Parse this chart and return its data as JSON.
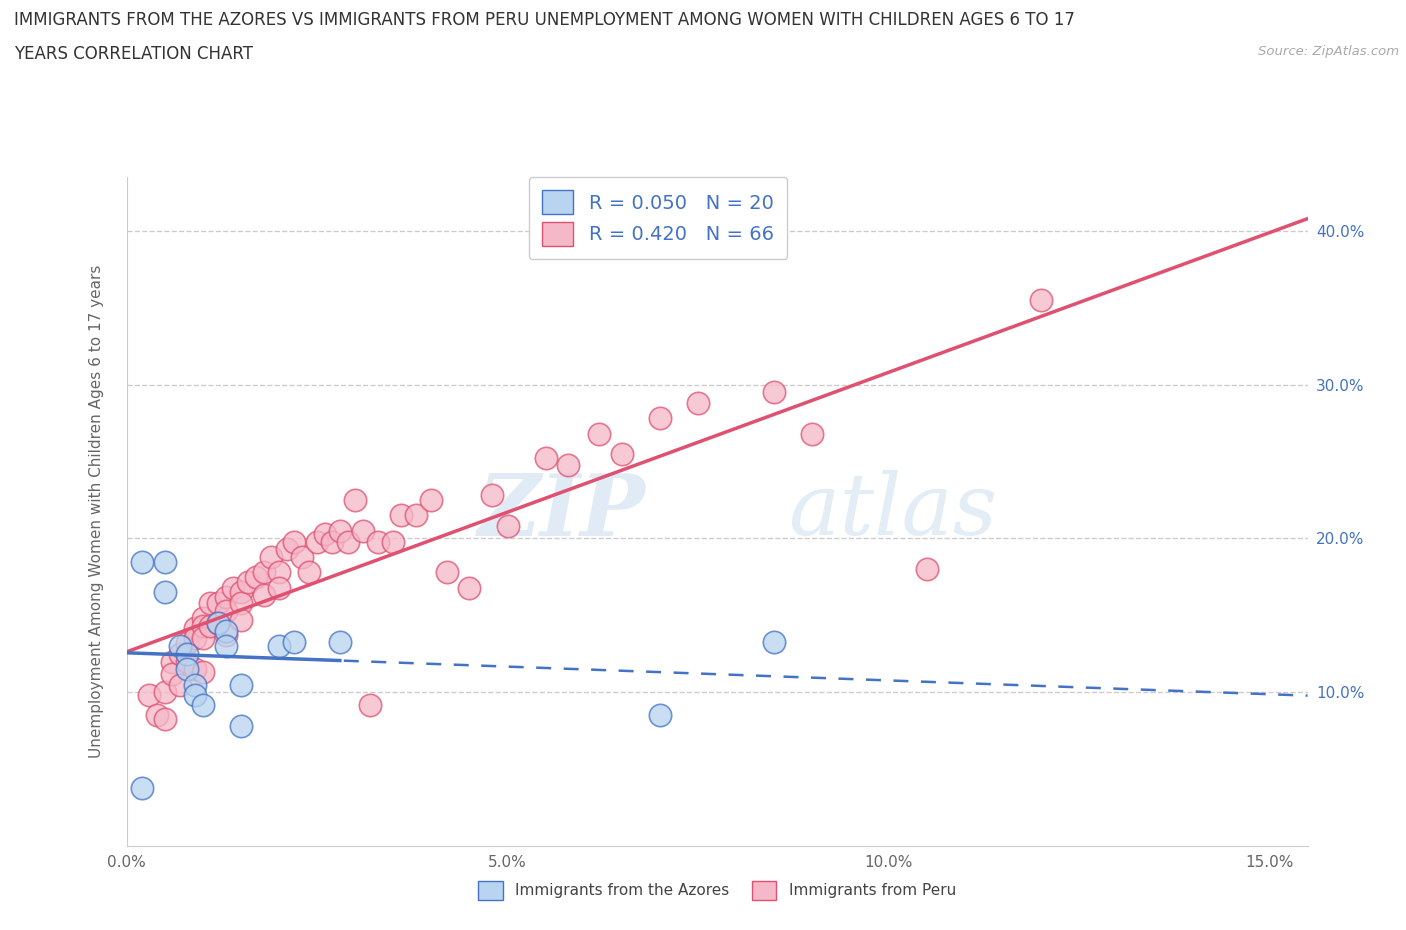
{
  "title_line1": "IMMIGRANTS FROM THE AZORES VS IMMIGRANTS FROM PERU UNEMPLOYMENT AMONG WOMEN WITH CHILDREN AGES 6 TO 17",
  "title_line2": "YEARS CORRELATION CHART",
  "source_text": "Source: ZipAtlas.com",
  "ylabel": "Unemployment Among Women with Children Ages 6 to 17 years",
  "xlim": [
    0.0,
    0.155
  ],
  "ylim": [
    0.0,
    0.435
  ],
  "xtick_labels": [
    "0.0%",
    "5.0%",
    "10.0%",
    "15.0%"
  ],
  "xtick_vals": [
    0.0,
    0.05,
    0.1,
    0.15
  ],
  "ytick_labels": [
    "10.0%",
    "20.0%",
    "30.0%",
    "40.0%"
  ],
  "ytick_vals": [
    0.1,
    0.2,
    0.3,
    0.4
  ],
  "azores_scatter_color": "#b8d4f0",
  "azores_edge_color": "#4472c4",
  "peru_scatter_color": "#f5b8c8",
  "peru_edge_color": "#e05070",
  "azores_line_color": "#4472c4",
  "peru_line_color": "#e05070",
  "legend_azores_stat": "R = 0.050   N = 20",
  "legend_peru_stat": "R = 0.420   N = 66",
  "legend_bottom_azores": "Immigrants from the Azores",
  "legend_bottom_peru": "Immigrants from Peru",
  "watermark_zip": "ZIP",
  "watermark_atlas": "atlas",
  "background_color": "#ffffff",
  "grid_color": "#cccccc",
  "azores_x": [
    0.002,
    0.005,
    0.005,
    0.007,
    0.008,
    0.008,
    0.009,
    0.009,
    0.01,
    0.012,
    0.013,
    0.013,
    0.015,
    0.015,
    0.02,
    0.022,
    0.028,
    0.07,
    0.085,
    0.002
  ],
  "azores_y": [
    0.185,
    0.185,
    0.165,
    0.13,
    0.125,
    0.115,
    0.105,
    0.098,
    0.092,
    0.145,
    0.14,
    0.13,
    0.105,
    0.078,
    0.13,
    0.133,
    0.133,
    0.085,
    0.133,
    0.038
  ],
  "peru_x": [
    0.003,
    0.004,
    0.005,
    0.005,
    0.006,
    0.006,
    0.007,
    0.007,
    0.008,
    0.008,
    0.009,
    0.009,
    0.009,
    0.01,
    0.01,
    0.01,
    0.01,
    0.011,
    0.011,
    0.012,
    0.012,
    0.013,
    0.013,
    0.013,
    0.014,
    0.015,
    0.015,
    0.015,
    0.016,
    0.017,
    0.018,
    0.018,
    0.019,
    0.02,
    0.02,
    0.021,
    0.022,
    0.023,
    0.024,
    0.025,
    0.026,
    0.027,
    0.028,
    0.029,
    0.03,
    0.031,
    0.032,
    0.033,
    0.035,
    0.036,
    0.038,
    0.04,
    0.042,
    0.045,
    0.048,
    0.05,
    0.055,
    0.058,
    0.062,
    0.065,
    0.07,
    0.075,
    0.085,
    0.09,
    0.105,
    0.12
  ],
  "peru_y": [
    0.098,
    0.085,
    0.1,
    0.083,
    0.12,
    0.112,
    0.125,
    0.105,
    0.132,
    0.12,
    0.142,
    0.135,
    0.115,
    0.148,
    0.143,
    0.135,
    0.113,
    0.158,
    0.143,
    0.158,
    0.145,
    0.162,
    0.153,
    0.137,
    0.168,
    0.165,
    0.158,
    0.147,
    0.172,
    0.175,
    0.178,
    0.163,
    0.188,
    0.178,
    0.168,
    0.193,
    0.198,
    0.188,
    0.178,
    0.198,
    0.203,
    0.198,
    0.205,
    0.198,
    0.225,
    0.205,
    0.092,
    0.198,
    0.198,
    0.215,
    0.215,
    0.225,
    0.178,
    0.168,
    0.228,
    0.208,
    0.252,
    0.248,
    0.268,
    0.255,
    0.278,
    0.288,
    0.295,
    0.268,
    0.18,
    0.355
  ]
}
